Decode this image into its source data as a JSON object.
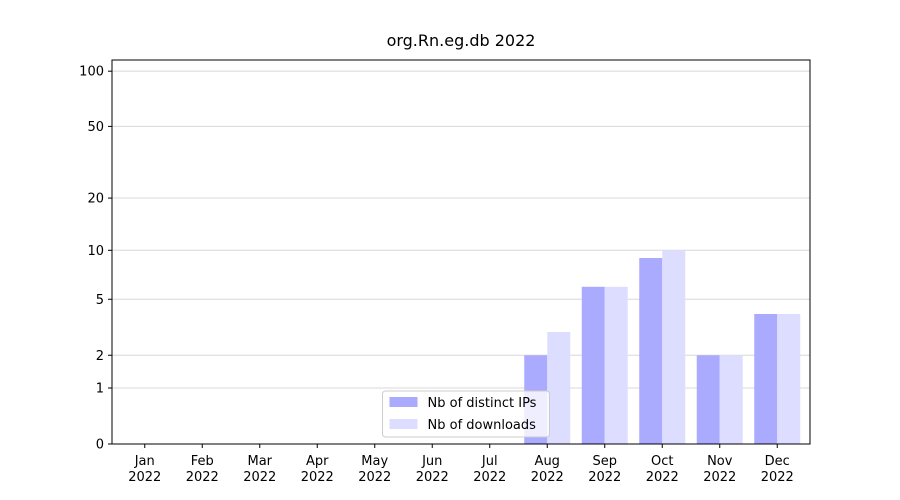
{
  "chart_data": {
    "type": "bar",
    "title": "org.Rn.eg.db 2022",
    "categories": [
      "Jan 2022",
      "Feb 2022",
      "Mar 2022",
      "Apr 2022",
      "May 2022",
      "Jun 2022",
      "Jul 2022",
      "Aug 2022",
      "Sep 2022",
      "Oct 2022",
      "Nov 2022",
      "Dec 2022"
    ],
    "series": [
      {
        "name": "Nb of distinct IPs",
        "color": "#aaaaff",
        "values": [
          0,
          0,
          0,
          0,
          0,
          0,
          0,
          2,
          6,
          9,
          2,
          4
        ]
      },
      {
        "name": "Nb of downloads",
        "color": "#ddddff",
        "values": [
          0,
          0,
          0,
          0,
          0,
          0,
          0,
          3,
          6,
          10,
          2,
          4
        ]
      }
    ],
    "yscale": "symlog",
    "ylim": [
      0,
      115
    ],
    "yticks": [
      0,
      1,
      2,
      5,
      10,
      20,
      50,
      100
    ],
    "grid": true,
    "legend": "lower center"
  }
}
